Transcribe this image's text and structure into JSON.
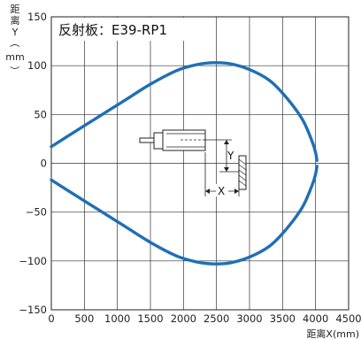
{
  "chart_data": {
    "type": "line",
    "title": "反射板：E39-RP1",
    "ylabel_chars": [
      "距",
      "离",
      "Y",
      "（",
      "mm",
      "）"
    ],
    "xlabel": "距离X(mm)",
    "xlim": [
      0,
      4500
    ],
    "ylim": [
      -150,
      150
    ],
    "xticks": [
      0,
      500,
      1000,
      1500,
      2000,
      2500,
      3000,
      3500,
      4000,
      4500
    ],
    "yticks": [
      150,
      100,
      50,
      0,
      -50,
      -100,
      -150
    ],
    "ytick_labels": [
      "150",
      "100",
      "50",
      "0",
      "−50",
      "−100",
      "−150"
    ],
    "grid": true,
    "line_color": "#1f6fb5",
    "series": [
      {
        "x": [
          0,
          300,
          700,
          1100,
          1500,
          1900,
          2200,
          2450,
          2700,
          3000,
          3300,
          3550,
          3800,
          3950,
          4000,
          4020
        ],
        "y": [
          17,
          30,
          47,
          64,
          81,
          95,
          101,
          103,
          102,
          96,
          85,
          68,
          45,
          22,
          11,
          3
        ]
      },
      {
        "x": [
          0,
          300,
          700,
          1100,
          1500,
          1900,
          2200,
          2450,
          2700,
          3000,
          3300,
          3550,
          3800,
          3950,
          4000,
          4020
        ],
        "y": [
          -17,
          -30,
          -47,
          -64,
          -81,
          -95,
          -101,
          -103,
          -102,
          -96,
          -85,
          -68,
          -45,
          -22,
          -11,
          -3
        ]
      }
    ],
    "diagram": {
      "y_label": "Y",
      "x_label": "X"
    }
  }
}
